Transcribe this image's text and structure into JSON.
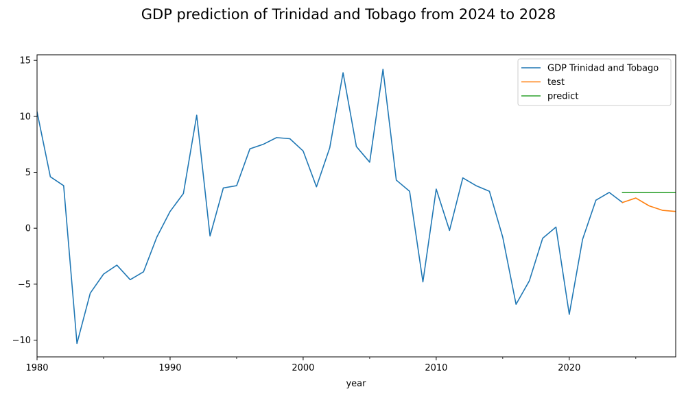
{
  "chart_data": {
    "type": "line",
    "title": "GDP prediction of Trinidad and Tobago from 2024 to 2028",
    "xlabel": "year",
    "ylabel": "",
    "xlim": [
      1980,
      2028
    ],
    "ylim": [
      -11.5,
      15.5
    ],
    "x_ticks": [
      1980,
      1990,
      2000,
      2010,
      2020
    ],
    "x_minor_ticks": [
      1985,
      1995,
      2005,
      2015,
      2025
    ],
    "y_ticks": [
      -10,
      -5,
      0,
      5,
      10,
      15
    ],
    "grid": false,
    "legend_position": "top-right",
    "series": [
      {
        "name": "GDP Trinidad and Tobago",
        "color": "#1f77b4",
        "x": [
          1980,
          1981,
          1982,
          1983,
          1984,
          1985,
          1986,
          1987,
          1988,
          1989,
          1990,
          1991,
          1992,
          1993,
          1994,
          1995,
          1996,
          1997,
          1998,
          1999,
          2000,
          2001,
          2002,
          2003,
          2004,
          2005,
          2006,
          2007,
          2008,
          2009,
          2010,
          2011,
          2012,
          2013,
          2014,
          2015,
          2016,
          2017,
          2018,
          2019,
          2020,
          2021,
          2022,
          2023,
          2024
        ],
        "values": [
          10.4,
          4.6,
          3.8,
          -10.3,
          -5.8,
          -4.1,
          -3.3,
          -4.6,
          -3.9,
          -0.8,
          1.5,
          3.1,
          10.1,
          -0.7,
          3.6,
          3.8,
          7.1,
          7.5,
          8.1,
          8.0,
          6.9,
          3.7,
          7.2,
          13.9,
          7.3,
          5.9,
          14.2,
          4.3,
          3.3,
          -4.8,
          3.5,
          -0.2,
          4.5,
          3.8,
          3.3,
          -0.8,
          -6.8,
          -4.7,
          -0.9,
          0.1,
          -7.7,
          -1.0,
          2.5,
          3.2,
          2.3
        ]
      },
      {
        "name": "test",
        "color": "#ff7f0e",
        "x": [
          2024,
          2025,
          2026,
          2027,
          2028
        ],
        "values": [
          2.3,
          2.7,
          2.0,
          1.6,
          1.5
        ]
      },
      {
        "name": "predict",
        "color": "#2ca02c",
        "x": [
          2024,
          2025,
          2026,
          2027,
          2028
        ],
        "values": [
          3.2,
          3.2,
          3.2,
          3.2,
          3.2
        ]
      }
    ]
  }
}
